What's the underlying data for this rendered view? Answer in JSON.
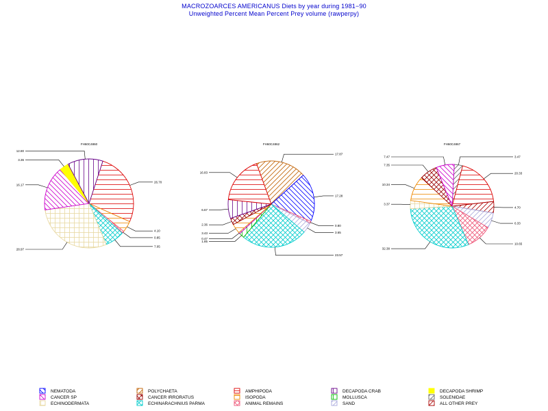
{
  "title": "MACROZOARCES AMERICANUS  Diets by year during  1981−90",
  "subtitle": "Unweighted Percent Mean Percent Prey  volume (rawperpy)",
  "chart_data": [
    {
      "type": "pie",
      "label": "FH60C4860",
      "slices": [
        {
          "category": "AMPHIPODA",
          "value": 26.7
        },
        {
          "category": "ISOPODA",
          "value": 4.1
        },
        {
          "category": "ANIMAL REMAINS",
          "value": 0.85
        },
        {
          "category": "ECHINARACHNIUS PARMA",
          "value": 7.05
        },
        {
          "category": "ECHINODERMATA",
          "value": 28.97
        },
        {
          "category": "CANCER SP",
          "value": 16.17
        },
        {
          "category": "DECAPODA SHRIMP",
          "value": 3.36
        },
        {
          "category": "DECAPODA CRAB",
          "value": 12.8
        }
      ],
      "slice_labels": [
        "26.70",
        "4.10",
        "0.85",
        "7.05",
        "28.97",
        "16.17",
        "3.36",
        "12.80"
      ]
    },
    {
      "type": "pie",
      "label": "FH60C4862",
      "slices": [
        {
          "category": "POLYCHAETA",
          "value": 17.87
        },
        {
          "category": "NEMATODA",
          "value": 17.28
        },
        {
          "category": "ANIMAL REMAINS",
          "value": 0.8
        },
        {
          "category": "SAND",
          "value": 3.65
        },
        {
          "category": "ECHINARACHNIUS PARMA",
          "value": 23.57
        },
        {
          "category": "MOLLUSCA",
          "value": 1.85
        },
        {
          "category": "CANCER SP",
          "value": 0.47
        },
        {
          "category": "ISOPODA",
          "value": 3.43
        },
        {
          "category": "CANCER IRRORATUS",
          "value": 2.36
        },
        {
          "category": "DECAPODA CRAB",
          "value": 6.67
        },
        {
          "category": "AMPHIPODA",
          "value": 16.83
        }
      ],
      "slice_labels": [
        "17.87",
        "17.28",
        "0.80",
        "3.65",
        "23.57",
        "1.85",
        "0.47",
        "3.43",
        "2.36",
        "6.67",
        "16.83"
      ]
    },
    {
      "type": "pie",
      "label": "FH60C4867",
      "slices": [
        {
          "category": "SOLENIDAE",
          "value": 3.47
        },
        {
          "category": "AMPHIPODA",
          "value": 20.33
        },
        {
          "category": "ALL OTHER PREY",
          "value": 4.7
        },
        {
          "category": "SAND",
          "value": 6.33
        },
        {
          "category": "ANIMAL REMAINS",
          "value": 10.65
        },
        {
          "category": "ECHINARACHNIUS PARMA",
          "value": 32.38
        },
        {
          "category": "ECHINODERMATA",
          "value": 3.37
        },
        {
          "category": "ISOPODA",
          "value": 10.34
        },
        {
          "category": "CANCER IRRORATUS",
          "value": 7.35
        },
        {
          "category": "CANCER SP",
          "value": 7.47
        }
      ],
      "slice_labels": [
        "3.47",
        "20.33",
        "4.70",
        "6.33",
        "10.65",
        "32.38",
        "3.37",
        "10.34",
        "7.35",
        "7.47"
      ]
    }
  ],
  "legend": [
    {
      "name": "NEMATODA",
      "color": "#0000ff",
      "pattern": "diag-down"
    },
    {
      "name": "POLYCHAETA",
      "color": "#c06000",
      "pattern": "diag-up"
    },
    {
      "name": "AMPHIPODA",
      "color": "#dd0000",
      "pattern": "horizontal"
    },
    {
      "name": "DECAPODA  CRAB",
      "color": "#660088",
      "pattern": "vertical"
    },
    {
      "name": "DECAPODA  SHRIMP",
      "color": "#ffff00",
      "pattern": "solid"
    },
    {
      "name": "CANCER  SP",
      "color": "#cc00cc",
      "pattern": "diag-down"
    },
    {
      "name": "CANCER  IRRORATUS",
      "color": "#990000",
      "pattern": "cross"
    },
    {
      "name": "ISOPODA",
      "color": "#ee8800",
      "pattern": "horizontal"
    },
    {
      "name": "MOLLUSCA",
      "color": "#00bb00",
      "pattern": "vertical"
    },
    {
      "name": "SOLENIDAE",
      "color": "#666666",
      "pattern": "diag-up"
    },
    {
      "name": "ECHINODERMATA",
      "color": "#e8d8a0",
      "pattern": "grid"
    },
    {
      "name": "ECHINARACHNIUS  PARMA",
      "color": "#00cccc",
      "pattern": "cross"
    },
    {
      "name": "ANIMAL  REMAINS",
      "color": "#ee5577",
      "pattern": "cross"
    },
    {
      "name": "SAND",
      "color": "#aaaadd",
      "pattern": "diag-up"
    },
    {
      "name": "ALL  OTHER  PREY",
      "color": "#aa0000",
      "pattern": "diag-up"
    }
  ]
}
